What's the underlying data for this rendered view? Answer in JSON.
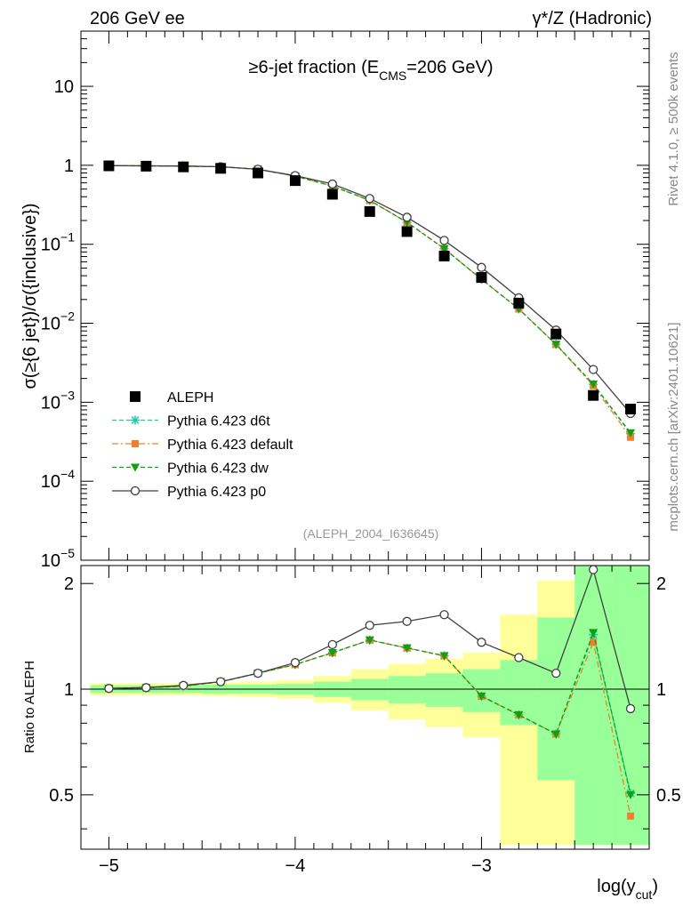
{
  "header": {
    "left": "206 GeV ee",
    "right": "γ*/Z (Hadronic)"
  },
  "side_labels": {
    "rivet": "Rivet 4.1.0, ≥ 500k events",
    "mcplots": "mcplots.cern.ch [arXiv:2401.10621]"
  },
  "colors": {
    "aleph": "#000000",
    "d6t": "#20c8a0",
    "default": "#f08030",
    "dw": "#10a010",
    "p0": "#404040",
    "band_yellow": "#ffff99",
    "band_green": "#99ff99"
  },
  "chart_data": [
    {
      "type": "line",
      "title_parts": [
        "≥6-jet fraction (E",
        "CMS",
        "=206 GeV)"
      ],
      "ylabel": "σ(≥{6 jet})/σ({inclusive})",
      "yscale": "log",
      "ylim": [
        1e-05,
        50
      ],
      "xlim": [
        -5.15,
        -2.1
      ],
      "ytick_labels": [
        {
          "base": "10",
          "exp": "",
          "value": 10
        },
        {
          "base": "1",
          "exp": "",
          "value": 1
        },
        {
          "base": "10",
          "exp": "−1",
          "value": 0.1
        },
        {
          "base": "10",
          "exp": "−2",
          "value": 0.01
        },
        {
          "base": "10",
          "exp": "−3",
          "value": 0.001
        },
        {
          "base": "10",
          "exp": "−4",
          "value": 0.0001
        },
        {
          "base": "10",
          "exp": "−5",
          "value": 1e-05
        }
      ],
      "watermark": "(ALEPH_2004_I636645)",
      "x": [
        -5.0,
        -4.8,
        -4.6,
        -4.4,
        -4.2,
        -4.0,
        -3.8,
        -3.6,
        -3.4,
        -3.2,
        -3.0,
        -2.8,
        -2.6,
        -2.4,
        -2.2
      ],
      "series": [
        {
          "name": "ALEPH",
          "key": "aleph",
          "values": [
            0.985,
            0.975,
            0.955,
            0.915,
            0.8,
            0.64,
            0.43,
            0.26,
            0.145,
            0.071,
            0.038,
            0.018,
            0.0073,
            0.00122,
            0.00082
          ]
        },
        {
          "name": "Pythia 6.423 d6t",
          "key": "d6t",
          "values": [
            0.99,
            0.985,
            0.975,
            0.96,
            0.89,
            0.73,
            0.545,
            0.36,
            0.19,
            0.088,
            0.036,
            0.0152,
            0.0054,
            0.00168,
            0.0004
          ]
        },
        {
          "name": "Pythia 6.423 default",
          "key": "default",
          "values": [
            0.99,
            0.985,
            0.975,
            0.96,
            0.89,
            0.73,
            0.545,
            0.36,
            0.19,
            0.088,
            0.036,
            0.0152,
            0.0054,
            0.00162,
            0.00036
          ]
        },
        {
          "name": "Pythia 6.423 dw",
          "key": "dw",
          "values": [
            0.99,
            0.985,
            0.975,
            0.96,
            0.89,
            0.73,
            0.545,
            0.36,
            0.19,
            0.088,
            0.036,
            0.0152,
            0.0054,
            0.0017,
            0.00041
          ]
        },
        {
          "name": "Pythia 6.423 p0",
          "key": "p0",
          "values": [
            0.99,
            0.985,
            0.98,
            0.96,
            0.89,
            0.74,
            0.58,
            0.38,
            0.22,
            0.112,
            0.051,
            0.021,
            0.0082,
            0.0026,
            0.00072
          ]
        }
      ]
    },
    {
      "type": "line",
      "ylabel": "Ratio to ALEPH",
      "xlabel_parts": [
        "log(y",
        "cut",
        ")"
      ],
      "ylim": [
        0.35,
        2.25
      ],
      "xlim": [
        -5.15,
        -2.1
      ],
      "ytick_labels": [
        "0.5",
        "1",
        "2"
      ],
      "xtick_labels": [
        "−5",
        "−4",
        "−3"
      ],
      "x": [
        -5.0,
        -4.8,
        -4.6,
        -4.4,
        -4.2,
        -4.0,
        -3.8,
        -3.6,
        -3.4,
        -3.2,
        -3.0,
        -2.8,
        -2.6,
        -2.4,
        -2.2
      ],
      "bin_edges": [
        -5.1,
        -4.9,
        -4.7,
        -4.5,
        -4.3,
        -4.1,
        -3.9,
        -3.7,
        -3.5,
        -3.3,
        -3.1,
        -2.9,
        -2.7,
        -2.5,
        -2.3,
        -2.1
      ],
      "band_yellow": [
        [
          0.96,
          1.04
        ],
        [
          0.96,
          1.04
        ],
        [
          0.96,
          1.04
        ],
        [
          0.955,
          1.045
        ],
        [
          0.95,
          1.05
        ],
        [
          0.94,
          1.06
        ],
        [
          0.915,
          1.09
        ],
        [
          0.87,
          1.14
        ],
        [
          0.82,
          1.18
        ],
        [
          0.78,
          1.22
        ],
        [
          0.73,
          1.27
        ],
        [
          0.36,
          1.63
        ],
        [
          0.36,
          2.04
        ],
        [
          0.36,
          2.25
        ],
        [
          0.36,
          2.25
        ]
      ],
      "band_green": [
        [
          0.975,
          1.025
        ],
        [
          0.975,
          1.025
        ],
        [
          0.975,
          1.025
        ],
        [
          0.97,
          1.03
        ],
        [
          0.97,
          1.03
        ],
        [
          0.965,
          1.035
        ],
        [
          0.95,
          1.05
        ],
        [
          0.93,
          1.07
        ],
        [
          0.91,
          1.09
        ],
        [
          0.89,
          1.11
        ],
        [
          0.86,
          1.14
        ],
        [
          0.79,
          1.21
        ],
        [
          0.55,
          1.6
        ],
        [
          0.36,
          2.25
        ],
        [
          0.36,
          2.25
        ]
      ],
      "series": [
        {
          "name": "Pythia 6.423 d6t",
          "key": "d6t",
          "values": [
            1.005,
            1.01,
            1.02,
            1.05,
            1.11,
            1.175,
            1.27,
            1.38,
            1.31,
            1.245,
            0.955,
            0.845,
            0.745,
            1.43,
            0.505
          ]
        },
        {
          "name": "Pythia 6.423 default",
          "key": "default",
          "values": [
            1.005,
            1.01,
            1.02,
            1.05,
            1.11,
            1.175,
            1.27,
            1.38,
            1.31,
            1.245,
            0.955,
            0.845,
            0.745,
            1.36,
            0.435
          ]
        },
        {
          "name": "Pythia 6.423 dw",
          "key": "dw",
          "values": [
            1.005,
            1.01,
            1.02,
            1.05,
            1.11,
            1.175,
            1.27,
            1.38,
            1.31,
            1.245,
            0.955,
            0.845,
            0.745,
            1.45,
            0.5
          ]
        },
        {
          "name": "Pythia 6.423 p0",
          "key": "p0",
          "values": [
            1.005,
            1.01,
            1.025,
            1.05,
            1.11,
            1.19,
            1.34,
            1.52,
            1.56,
            1.63,
            1.36,
            1.23,
            1.11,
            2.19,
            0.88
          ]
        }
      ]
    }
  ]
}
